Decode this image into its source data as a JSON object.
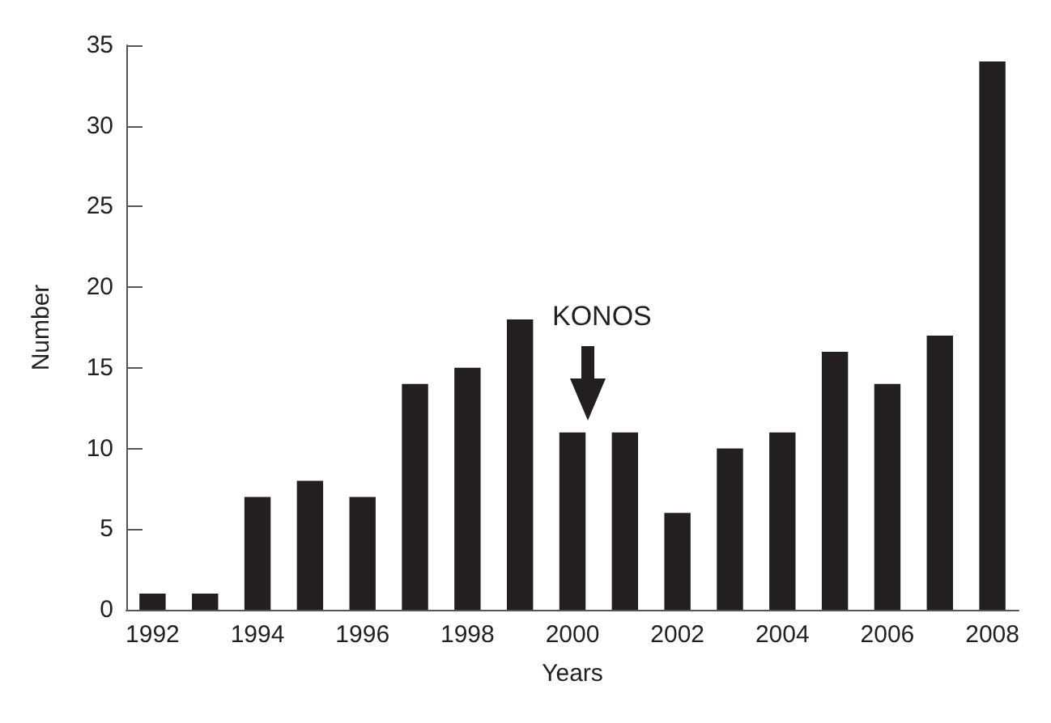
{
  "chart_data": {
    "type": "bar",
    "xlabel": "Years",
    "ylabel": "Number",
    "categories": [
      "1992",
      null,
      "1994",
      null,
      "1996",
      null,
      "1998",
      null,
      "2000",
      null,
      "2002",
      null,
      "2004",
      null,
      "2006",
      null,
      "2008"
    ],
    "values": [
      1,
      1,
      7,
      8,
      7,
      14,
      15,
      18,
      11,
      11,
      6,
      10,
      11,
      16,
      14,
      17,
      34
    ],
    "color": "#231f20",
    "ylim": [
      0,
      35
    ],
    "yticks": [
      0,
      5,
      10,
      15,
      20,
      25,
      30,
      35
    ],
    "grid": false,
    "annotations": [
      "KONOS"
    ]
  }
}
